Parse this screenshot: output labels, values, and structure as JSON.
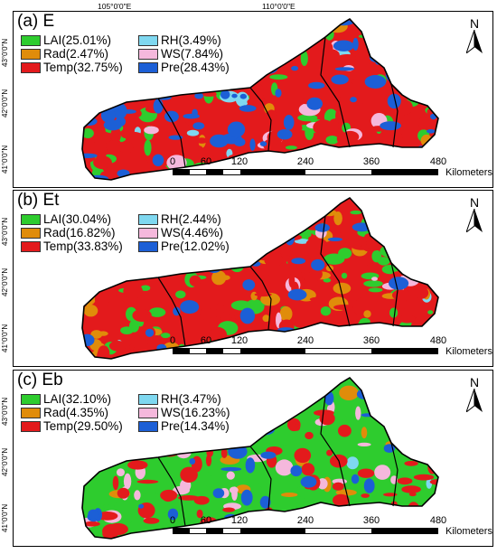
{
  "top_coords": [
    "105°0'0\"E",
    "110°0'0\"E"
  ],
  "lat_ticks": [
    "43°0'0\"N",
    "42°0'0\"N",
    "41°0'0\"N"
  ],
  "colors": {
    "LAI": "#2ecc2e",
    "Rad": "#e08c0a",
    "Temp": "#e31a1c",
    "RH": "#7fd8f0",
    "WS": "#f5b8dc",
    "Pre": "#1c5fd6"
  },
  "panels": [
    {
      "title": "(a)  E",
      "legend": [
        "LAI(25.01%)",
        "RH(3.49%)",
        "Rad(2.47%)",
        "WS(7.84%)",
        "Temp(32.75%)",
        "Pre(28.43%)"
      ],
      "shares": {
        "LAI": 25.01,
        "RH": 3.49,
        "Rad": 2.47,
        "WS": 7.84,
        "Temp": 32.75,
        "Pre": 28.43
      }
    },
    {
      "title": "(b)  Et",
      "legend": [
        "LAI(30.04%)",
        "RH(2.44%)",
        "Rad(16.82%)",
        "WS(4.46%)",
        "Temp(33.83%)",
        "Pre(12.02%)"
      ],
      "shares": {
        "LAI": 30.04,
        "RH": 2.44,
        "Rad": 16.82,
        "WS": 4.46,
        "Temp": 33.83,
        "Pre": 12.02
      }
    },
    {
      "title": "(c)  Eb",
      "legend": [
        "LAI(32.10%)",
        "RH(3.47%)",
        "Rad(4.35%)",
        "WS(16.23%)",
        "Temp(29.50%)",
        "Pre(14.34%)"
      ],
      "shares": {
        "LAI": 32.1,
        "RH": 3.47,
        "Rad": 4.35,
        "WS": 16.23,
        "Temp": 29.5,
        "Pre": 14.34
      }
    }
  ],
  "scale_labels": [
    "0",
    "60",
    "120",
    "240",
    "360",
    "480"
  ],
  "scale_unit": "Kilometers",
  "north_label": "N"
}
